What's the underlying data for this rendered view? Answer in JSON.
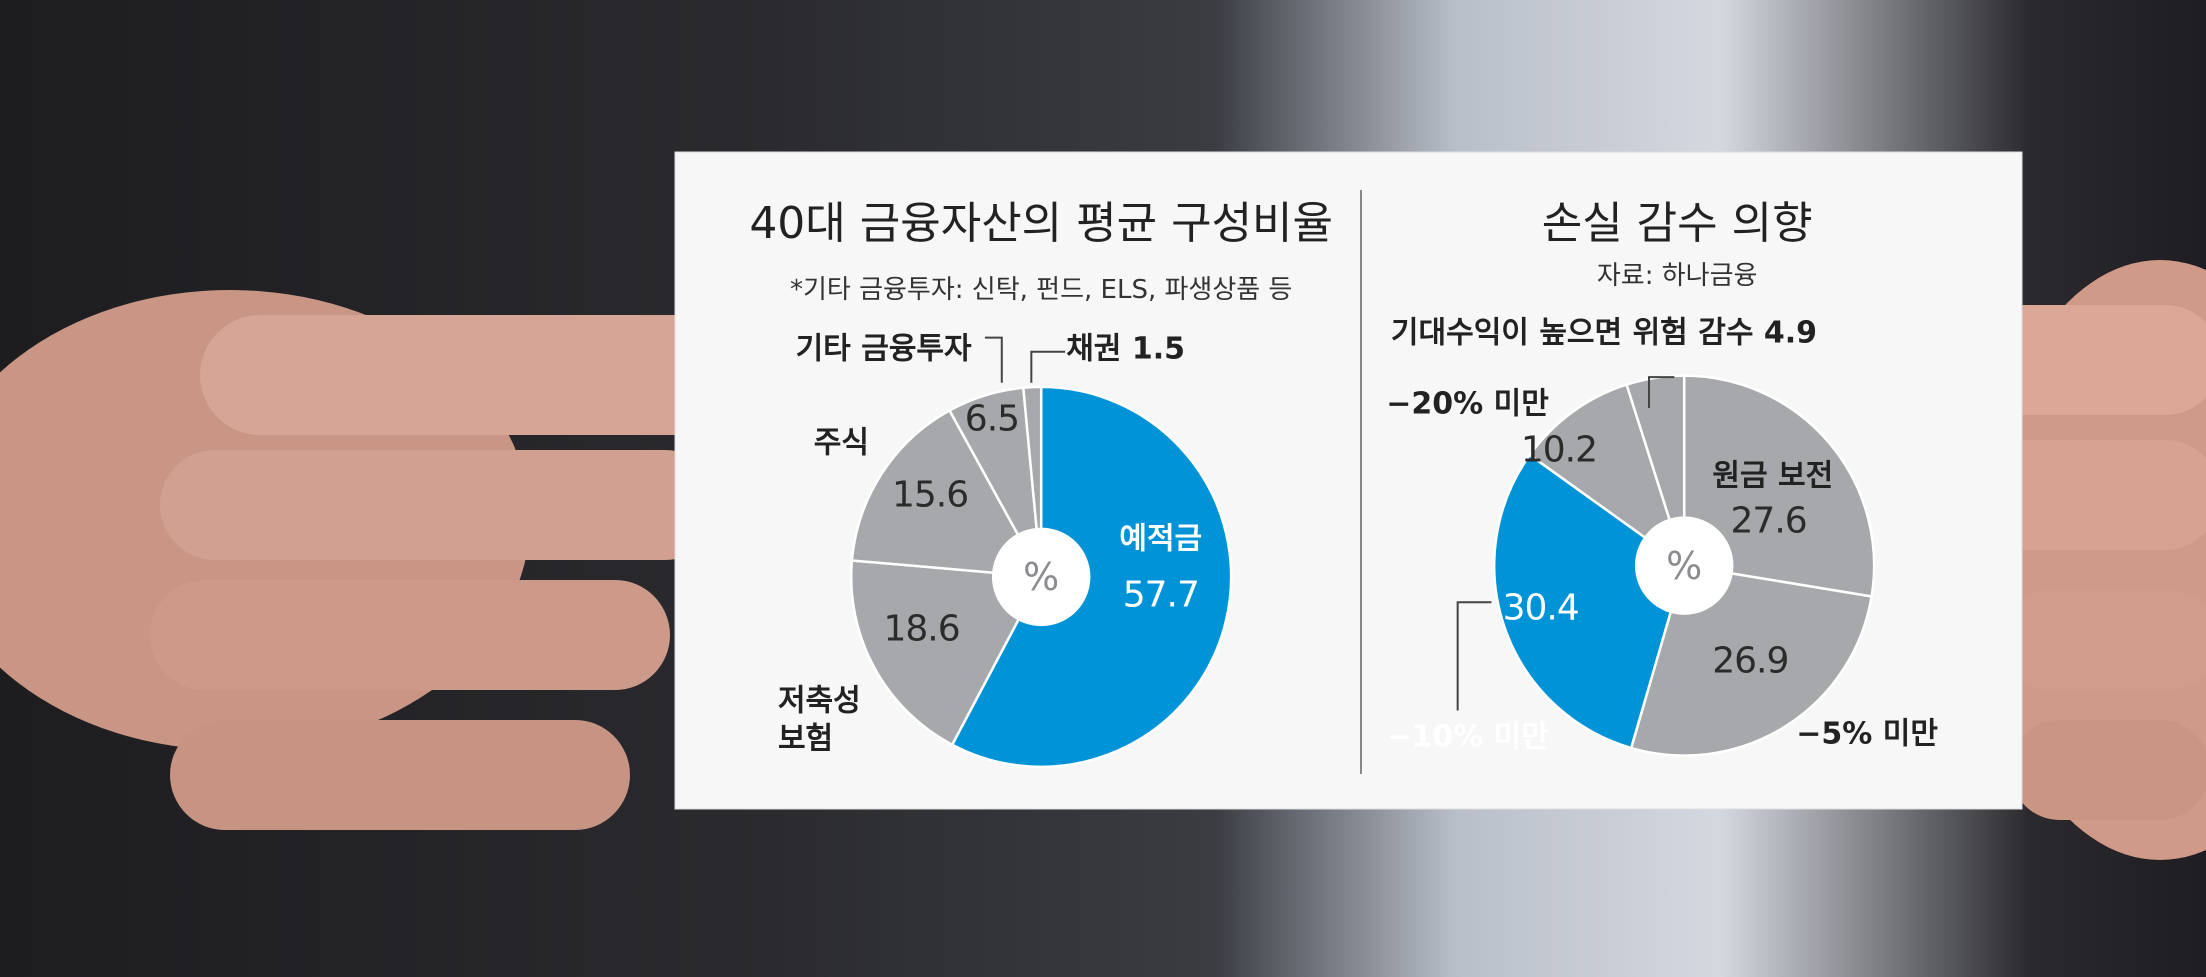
{
  "chart_data": [
    {
      "type": "pie",
      "title": "40대 금융자산의 평균 구성비율",
      "subtitle": "*기타 금융투자: 신탁, 펀드, ELS, 파생상품 등",
      "center_label": "%",
      "categories": [
        "예적금",
        "저축성 보험",
        "주식",
        "기타 금융투자",
        "채권"
      ],
      "values": [
        57.7,
        18.6,
        15.6,
        6.5,
        1.5
      ],
      "colors": [
        "#0093d8",
        "#a6a8ab",
        "#a6a8ab",
        "#a6a8ab",
        "#a6a8ab"
      ]
    },
    {
      "type": "pie",
      "title": "손실 감수 의향",
      "subtitle": "자료: 하나금융",
      "center_label": "%",
      "categories": [
        "원금 보전",
        "−5% 미만",
        "−10% 미만",
        "−20% 미만",
        "기대수익이 높으면 위험 감수"
      ],
      "values": [
        27.6,
        26.9,
        30.4,
        10.2,
        4.9
      ],
      "colors": [
        "#a6a8ab",
        "#a6a8ab",
        "#0093d8",
        "#a6a8ab",
        "#a6a8ab"
      ]
    }
  ]
}
